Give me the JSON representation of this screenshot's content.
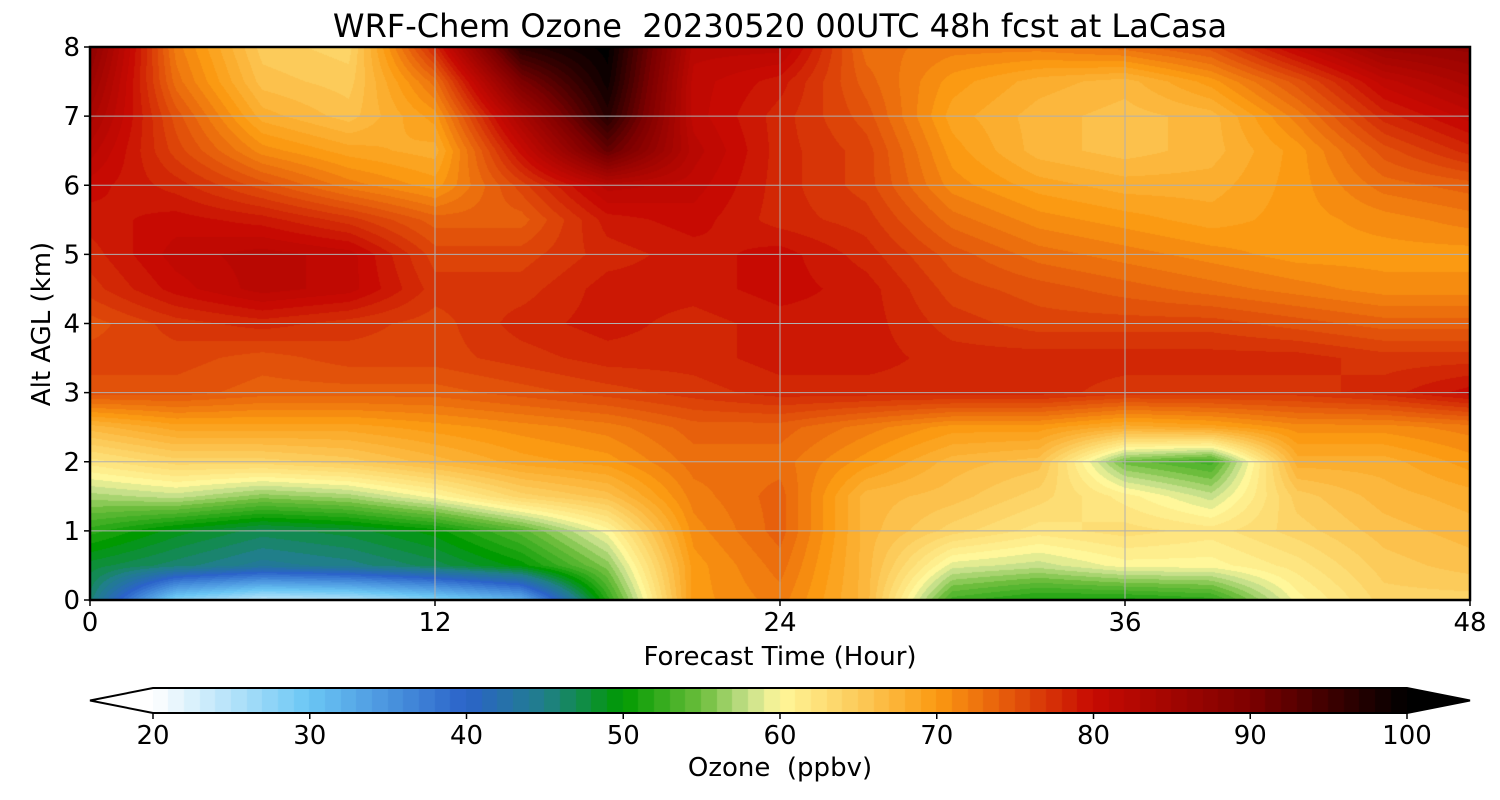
{
  "chart_data": {
    "type": "heatmap",
    "title": "WRF-Chem Ozone  20230520 00UTC 48h fcst at LaCasa",
    "xlabel": "Forecast Time (Hour)",
    "ylabel": "Alt AGL (km)",
    "xlim": [
      0,
      48
    ],
    "ylim": [
      0,
      8
    ],
    "xticks": [
      0,
      12,
      24,
      36,
      48
    ],
    "yticks": [
      0,
      1,
      2,
      3,
      4,
      5,
      6,
      7,
      8
    ],
    "grid": true,
    "x": [
      0,
      3,
      6,
      9,
      12,
      15,
      18,
      21,
      24,
      27,
      30,
      33,
      36,
      39,
      42,
      45,
      48
    ],
    "y": [
      0,
      0.5,
      1,
      1.5,
      2,
      2.5,
      3,
      3.5,
      4,
      4.5,
      5,
      5.5,
      6,
      6.5,
      7,
      7.5,
      8
    ],
    "z": [
      [
        46,
        28,
        24,
        25,
        28,
        32,
        52,
        70,
        72,
        67,
        53,
        51,
        51,
        52,
        60,
        64,
        64
      ],
      [
        48,
        46,
        44,
        45,
        47,
        50,
        56,
        70,
        73,
        67,
        59,
        58,
        60,
        60,
        62,
        65,
        66
      ],
      [
        52,
        49,
        47,
        48,
        50,
        54,
        60,
        71,
        74,
        67,
        64,
        62,
        63,
        62,
        64,
        66,
        67
      ],
      [
        57,
        58,
        56,
        57,
        60,
        64,
        66,
        72,
        74,
        67,
        66,
        64,
        61,
        58,
        65,
        67,
        68
      ],
      [
        62,
        64,
        64,
        65,
        67,
        69,
        70,
        73,
        73,
        70,
        67,
        66,
        55,
        53,
        68,
        68,
        70
      ],
      [
        67,
        69,
        69,
        69,
        70,
        71,
        72,
        74,
        74,
        72,
        70,
        70,
        68,
        69,
        71,
        71,
        72
      ],
      [
        75,
        75,
        74,
        74,
        74,
        75,
        76,
        77,
        78,
        78,
        78,
        78,
        77,
        77,
        77,
        78,
        80
      ],
      [
        76,
        76,
        75,
        76,
        76,
        77,
        78,
        78,
        79,
        79,
        78,
        78,
        78,
        78,
        78,
        77,
        77
      ],
      [
        75,
        77,
        78,
        77,
        76,
        78,
        79,
        78,
        79,
        79,
        77,
        76,
        76,
        76,
        75,
        74,
        74
      ],
      [
        77,
        80,
        82,
        81,
        77,
        77,
        79,
        79,
        80,
        79,
        76,
        75,
        74,
        73,
        72,
        71,
        71
      ],
      [
        78,
        81,
        82,
        81,
        76,
        76,
        78,
        79,
        80,
        78,
        75,
        73,
        72,
        71,
        70,
        70,
        70
      ],
      [
        79,
        80,
        79,
        77,
        74,
        74,
        79,
        80,
        78,
        77,
        73,
        71,
        70,
        69,
        70,
        71,
        72
      ],
      [
        80,
        78,
        75,
        72,
        70,
        76,
        82,
        81,
        78,
        76,
        71,
        69,
        68,
        68,
        70,
        73,
        74
      ],
      [
        82,
        76,
        71,
        69,
        68,
        80,
        92,
        82,
        78,
        76,
        70,
        67,
        66,
        67,
        70,
        75,
        78
      ],
      [
        84,
        75,
        68,
        66,
        70,
        84,
        97,
        81,
        78,
        75,
        69,
        67,
        66,
        67,
        72,
        78,
        81
      ],
      [
        86,
        73,
        66,
        65,
        73,
        90,
        99,
        81,
        79,
        74,
        70,
        68,
        67,
        70,
        75,
        81,
        84
      ],
      [
        88,
        72,
        65,
        64,
        78,
        97,
        100,
        82,
        82,
        73,
        72,
        72,
        73,
        75,
        81,
        86,
        87
      ]
    ],
    "colorbar": {
      "label": "Ozone  (ppbv)",
      "min": 20,
      "max": 100,
      "ticks": [
        20,
        30,
        40,
        50,
        60,
        70,
        80,
        90,
        100
      ],
      "extend": "both",
      "colors": [
        [
          20,
          "#ffffff"
        ],
        [
          30,
          "#6ac6f4"
        ],
        [
          40,
          "#2b63c9"
        ],
        [
          45,
          "#207f8a"
        ],
        [
          50,
          "#009a00"
        ],
        [
          55,
          "#6cbd3c"
        ],
        [
          58,
          "#c6e08a"
        ],
        [
          60,
          "#fff79a"
        ],
        [
          65,
          "#fccb5a"
        ],
        [
          70,
          "#fb9a12"
        ],
        [
          75,
          "#e2520a"
        ],
        [
          80,
          "#c70a02"
        ],
        [
          90,
          "#7d0000"
        ],
        [
          100,
          "#000000"
        ]
      ]
    }
  }
}
